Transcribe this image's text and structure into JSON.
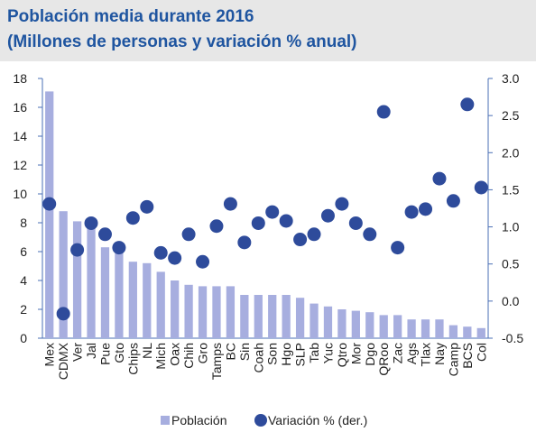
{
  "chart_data": {
    "type": "bar_dot",
    "title": "Población media durante 2016",
    "subtitle": "(Millones de personas y variación % anual)",
    "categories": [
      "Mex",
      "CDMX",
      "Ver",
      "Jal",
      "Pue",
      "Gto",
      "Chips",
      "NL",
      "Mich",
      "Oax",
      "Chih",
      "Gro",
      "Tamps",
      "BC",
      "Sin",
      "Coah",
      "Son",
      "Hgo",
      "SLP",
      "Tab",
      "Yuc",
      "Qtro",
      "Mor",
      "Dgo",
      "QRoo",
      "Zac",
      "Ags",
      "Tlax",
      "Nay",
      "Camp",
      "BCS",
      "Col"
    ],
    "series": [
      {
        "name": "Población",
        "color": "#a7aedf",
        "values": [
          17.1,
          8.8,
          8.1,
          8.0,
          6.3,
          5.9,
          5.3,
          5.2,
          4.6,
          4.0,
          3.7,
          3.6,
          3.6,
          3.6,
          3.0,
          3.0,
          3.0,
          3.0,
          2.8,
          2.4,
          2.2,
          2.0,
          1.9,
          1.8,
          1.6,
          1.6,
          1.3,
          1.3,
          1.3,
          0.9,
          0.8,
          0.7
        ]
      },
      {
        "name": "Variación % (der.)",
        "color": "#2e4b9b",
        "axis": "y2",
        "values": [
          1.31,
          -0.17,
          0.69,
          1.05,
          0.9,
          0.72,
          1.12,
          1.27,
          0.65,
          0.58,
          0.9,
          0.53,
          1.01,
          1.31,
          0.79,
          1.05,
          1.2,
          1.08,
          0.83,
          0.9,
          1.15,
          1.31,
          1.05,
          0.9,
          2.55,
          0.72,
          1.2,
          1.24,
          1.65,
          1.35,
          2.65,
          1.53
        ]
      }
    ],
    "ylim": [
      0,
      18
    ],
    "yticks": [
      0,
      2,
      4,
      6,
      8,
      10,
      12,
      14,
      16,
      18
    ],
    "y2lim": [
      -0.5,
      3.0
    ],
    "y2ticks": [
      -0.5,
      {
        "value": 0,
        "label": "0.0"
      },
      0.5,
      {
        "value": 1,
        "label": "1.0"
      },
      1.5,
      {
        "value": 2,
        "label": "2.0"
      },
      2.5,
      {
        "value": 3,
        "label": "3.0"
      }
    ],
    "legend": "bottom"
  }
}
